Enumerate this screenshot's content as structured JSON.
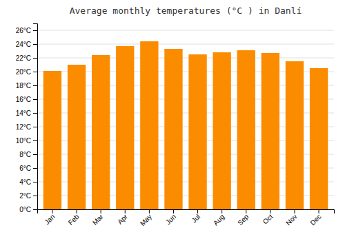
{
  "chart_data": {
    "type": "bar",
    "title": "Average monthly temperatures (°C ) in Danlí",
    "categories": [
      "Jan",
      "Feb",
      "Mar",
      "Apr",
      "May",
      "Jun",
      "Jul",
      "Aug",
      "Sep",
      "Oct",
      "Nov",
      "Dec"
    ],
    "values": [
      20.1,
      21.0,
      22.4,
      23.7,
      24.4,
      23.3,
      22.5,
      22.8,
      23.1,
      22.7,
      21.5,
      20.5
    ],
    "color": "#FB8C00",
    "ylim": [
      0,
      27
    ],
    "yticks": [
      {
        "value": 0,
        "label": "0°C"
      },
      {
        "value": 2,
        "label": "2°C"
      },
      {
        "value": 4,
        "label": "4°C"
      },
      {
        "value": 6,
        "label": "6°C"
      },
      {
        "value": 8,
        "label": "8°C"
      },
      {
        "value": 10,
        "label": "10°C"
      },
      {
        "value": 12,
        "label": "12°C"
      },
      {
        "value": 14,
        "label": "14°C"
      },
      {
        "value": 16,
        "label": "16°C"
      },
      {
        "value": 18,
        "label": "18°C"
      },
      {
        "value": 20,
        "label": "20°C"
      },
      {
        "value": 22,
        "label": "22°C"
      },
      {
        "value": 24,
        "label": "24°C"
      },
      {
        "value": 26,
        "label": "26°C"
      }
    ],
    "grid": true
  }
}
